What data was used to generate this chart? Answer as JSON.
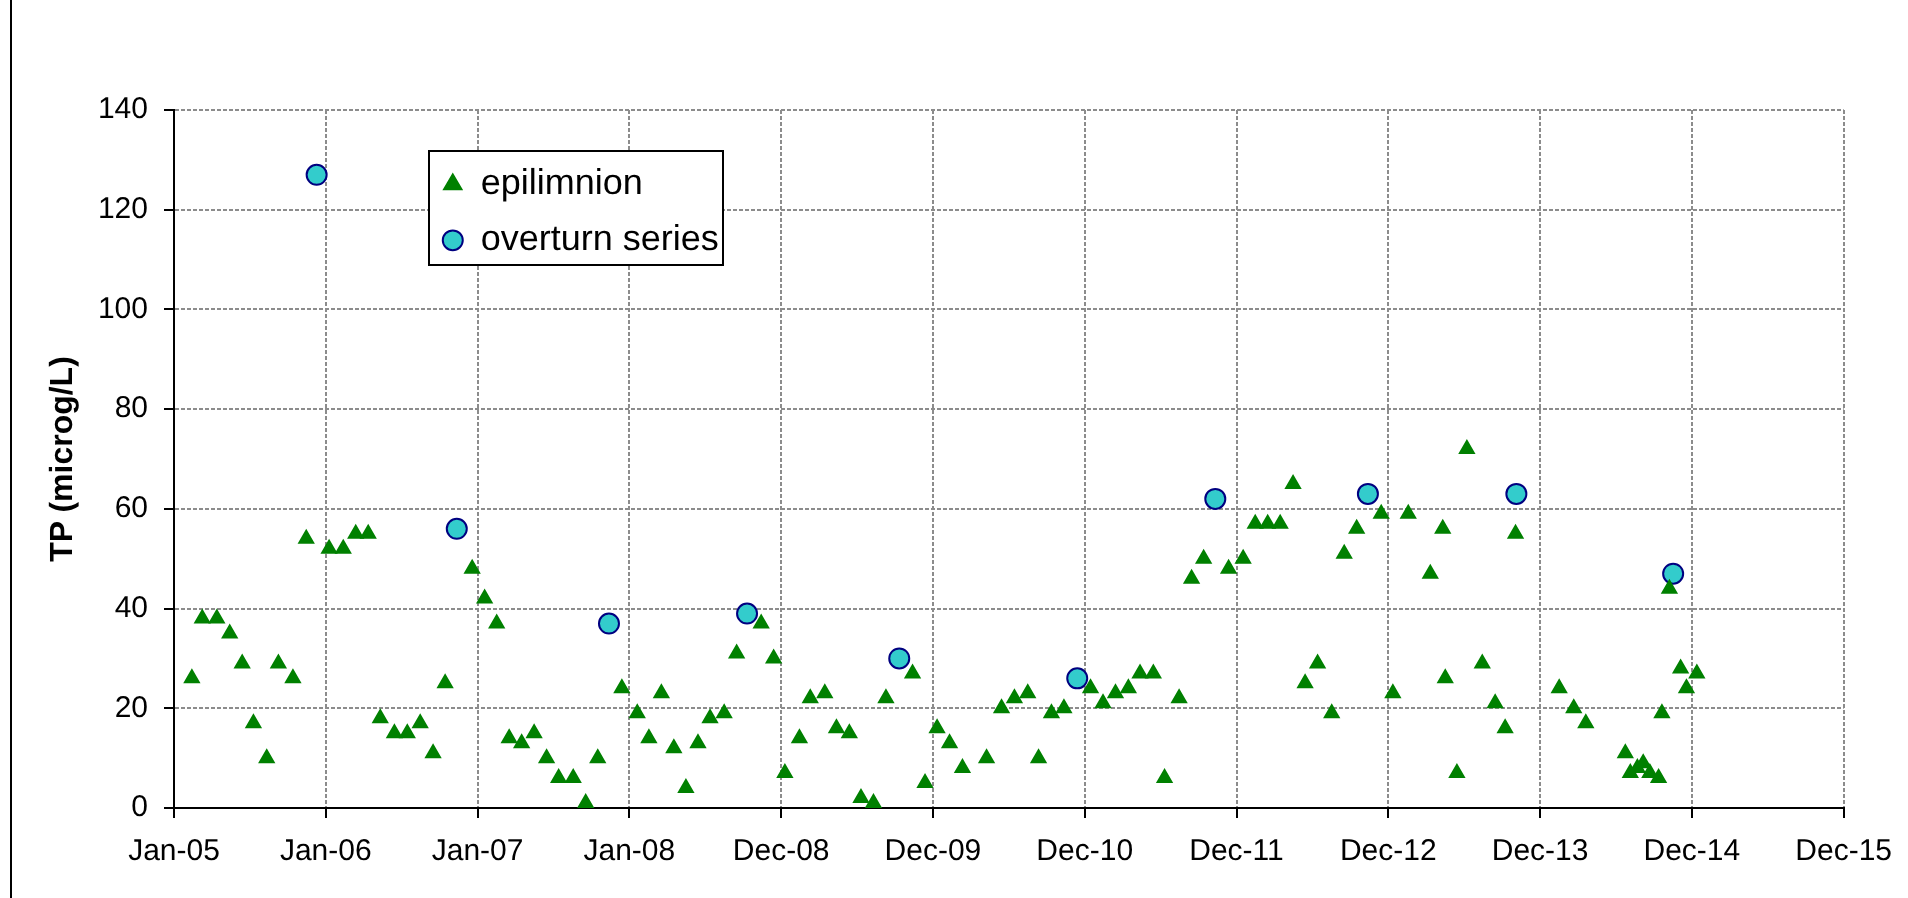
{
  "chart_data": {
    "type": "scatter",
    "ylabel": "TP (microg/L)",
    "xlim": [
      "2005-01-01",
      "2015-12-30"
    ],
    "xticks": [
      {
        "value": "2005-01-01",
        "label": "Jan-05"
      },
      {
        "value": "2006-01-01",
        "label": "Jan-06"
      },
      {
        "value": "2007-01-01",
        "label": "Jan-07"
      },
      {
        "value": "2008-01-01",
        "label": "Jan-08"
      },
      {
        "value": "2008-12-31",
        "label": "Dec-08"
      },
      {
        "value": "2009-12-31",
        "label": "Dec-09"
      },
      {
        "value": "2010-12-31",
        "label": "Dec-10"
      },
      {
        "value": "2011-12-31",
        "label": "Dec-11"
      },
      {
        "value": "2012-12-30",
        "label": "Dec-12"
      },
      {
        "value": "2013-12-30",
        "label": "Dec-13"
      },
      {
        "value": "2014-12-30",
        "label": "Dec-14"
      },
      {
        "value": "2015-12-30",
        "label": "Dec-15"
      }
    ],
    "ylim": [
      0,
      140
    ],
    "yticks": [
      0,
      20,
      40,
      60,
      80,
      100,
      120,
      140
    ],
    "grid": true,
    "legend": "top left",
    "series": [
      {
        "name": "epilimnion",
        "color": "#008000",
        "marker": "triangle",
        "x": [
          "2005-02-13",
          "2005-03-10",
          "2005-04-14",
          "2005-05-15",
          "2005-06-14",
          "2005-07-11",
          "2005-08-12",
          "2005-09-09",
          "2005-10-14",
          "2005-11-15",
          "2006-01-09",
          "2006-02-12",
          "2006-03-14",
          "2006-04-13",
          "2006-05-12",
          "2006-06-15",
          "2006-07-16",
          "2006-08-16",
          "2006-09-16",
          "2006-10-15",
          "2006-12-19",
          "2007-01-18",
          "2007-02-16",
          "2007-03-18",
          "2007-04-17",
          "2007-05-17",
          "2007-06-16",
          "2007-07-15",
          "2007-08-19",
          "2007-09-18",
          "2007-10-17",
          "2007-12-14",
          "2008-01-20",
          "2008-02-17",
          "2008-03-18",
          "2008-04-17",
          "2008-05-16",
          "2008-06-14",
          "2008-07-13",
          "2008-08-16",
          "2008-09-15",
          "2008-11-13",
          "2008-12-13",
          "2009-01-09",
          "2009-02-13",
          "2009-03-11",
          "2009-04-15",
          "2009-05-13",
          "2009-06-13",
          "2009-07-11",
          "2009-08-10",
          "2009-09-09",
          "2009-11-12",
          "2009-12-12",
          "2010-01-10",
          "2010-02-09",
          "2010-03-12",
          "2010-05-09",
          "2010-06-14",
          "2010-07-15",
          "2010-08-16",
          "2010-09-11",
          "2010-10-12",
          "2010-11-11",
          "2011-01-14",
          "2011-02-13",
          "2011-03-15",
          "2011-04-15",
          "2011-05-13",
          "2011-06-14",
          "2011-07-11",
          "2011-08-15",
          "2011-09-14",
          "2011-10-13",
          "2011-12-12",
          "2012-01-16",
          "2012-02-14",
          "2012-03-15",
          "2012-04-14",
          "2012-05-15",
          "2012-06-13",
          "2012-07-13",
          "2012-08-16",
          "2012-09-15",
          "2012-10-15",
          "2012-12-13",
          "2013-01-10",
          "2013-02-16",
          "2013-04-10",
          "2013-05-10",
          "2013-05-16",
          "2013-06-13",
          "2013-07-07",
          "2013-08-13",
          "2013-09-13",
          "2013-10-07",
          "2013-11-01",
          "2014-02-14",
          "2014-03-21",
          "2014-04-19",
          "2014-07-23",
          "2014-08-04",
          "2014-08-21",
          "2014-09-04",
          "2014-09-20",
          "2014-10-11",
          "2014-10-19",
          "2014-11-06",
          "2014-12-03",
          "2014-12-17",
          "2015-01-11"
        ],
        "values": [
          26,
          38,
          38,
          35,
          29,
          17,
          10,
          29,
          26,
          54,
          52,
          52,
          55,
          55,
          18,
          15,
          15,
          17,
          11,
          25,
          48,
          42,
          37,
          14,
          13,
          15,
          10,
          6,
          6,
          1,
          10,
          24,
          19,
          14,
          23,
          12,
          4,
          13,
          18,
          19,
          31,
          37,
          30,
          7,
          14,
          22,
          23,
          16,
          15,
          2,
          1,
          22,
          27,
          5,
          16,
          13,
          8,
          10,
          20,
          22,
          23,
          10,
          19,
          20,
          24,
          21,
          23,
          24,
          27,
          27,
          6,
          22,
          46,
          50,
          48,
          50,
          57,
          57,
          57,
          65,
          25,
          29,
          19,
          51,
          56,
          59,
          23,
          59,
          47,
          56,
          26,
          7,
          72,
          29,
          21,
          16,
          55,
          24,
          20,
          17,
          11,
          7,
          8,
          9,
          7,
          6,
          19,
          44,
          28,
          24,
          27
        ]
      },
      {
        "name": "overturn series",
        "color": "#33cccc",
        "marker": "circle",
        "x": [
          "2005-12-10",
          "2006-11-12",
          "2007-11-13",
          "2008-10-10",
          "2009-10-11",
          "2010-12-13",
          "2011-11-10",
          "2012-11-11",
          "2013-11-03",
          "2014-11-15"
        ],
        "values": [
          127,
          56,
          37,
          39,
          30,
          26,
          62,
          63,
          63,
          47
        ]
      }
    ]
  }
}
